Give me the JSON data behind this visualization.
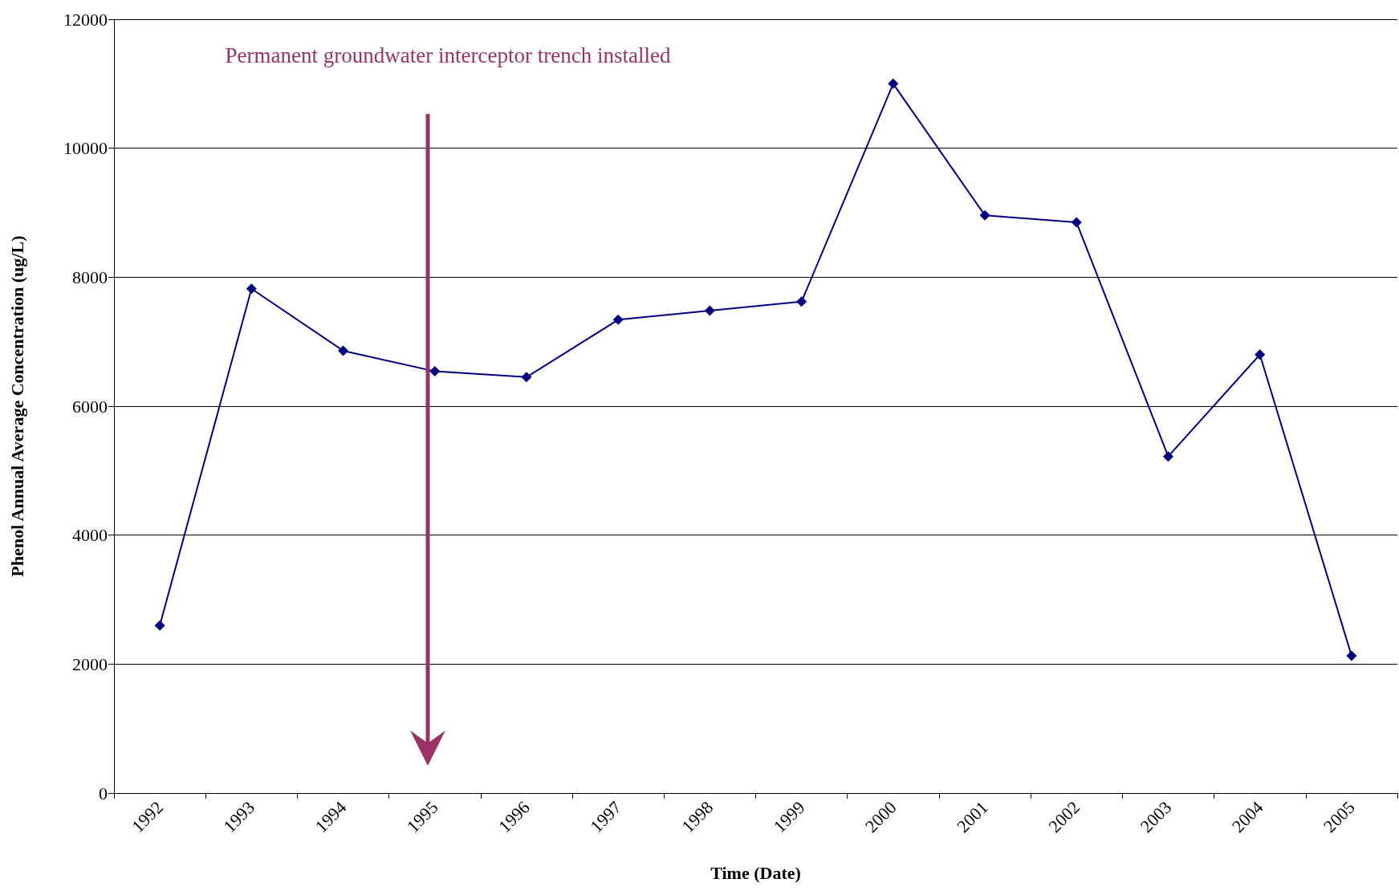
{
  "chart_data": {
    "type": "line",
    "xlabel": "Time (Date)",
    "ylabel": "Phenol Annual Average Concentration (ug/L)",
    "categories": [
      "1992",
      "1993",
      "1994",
      "1995",
      "1996",
      "1997",
      "1998",
      "1999",
      "2000",
      "2001",
      "2002",
      "2003",
      "2004",
      "2005"
    ],
    "series": [
      {
        "color": "#000080",
        "values": [
          2600,
          7820,
          6860,
          6540,
          6450,
          7340,
          7480,
          7620,
          11000,
          8960,
          8850,
          5220,
          6800,
          2130
        ]
      }
    ],
    "ylim": [
      0,
      12000
    ],
    "yticks": [
      0,
      2000,
      4000,
      6000,
      8000,
      10000,
      12000
    ],
    "grid": "y",
    "marker": "diamond",
    "line_style": "solid",
    "annotations": [
      "Permanent groundwater interceptor trench installed"
    ]
  }
}
